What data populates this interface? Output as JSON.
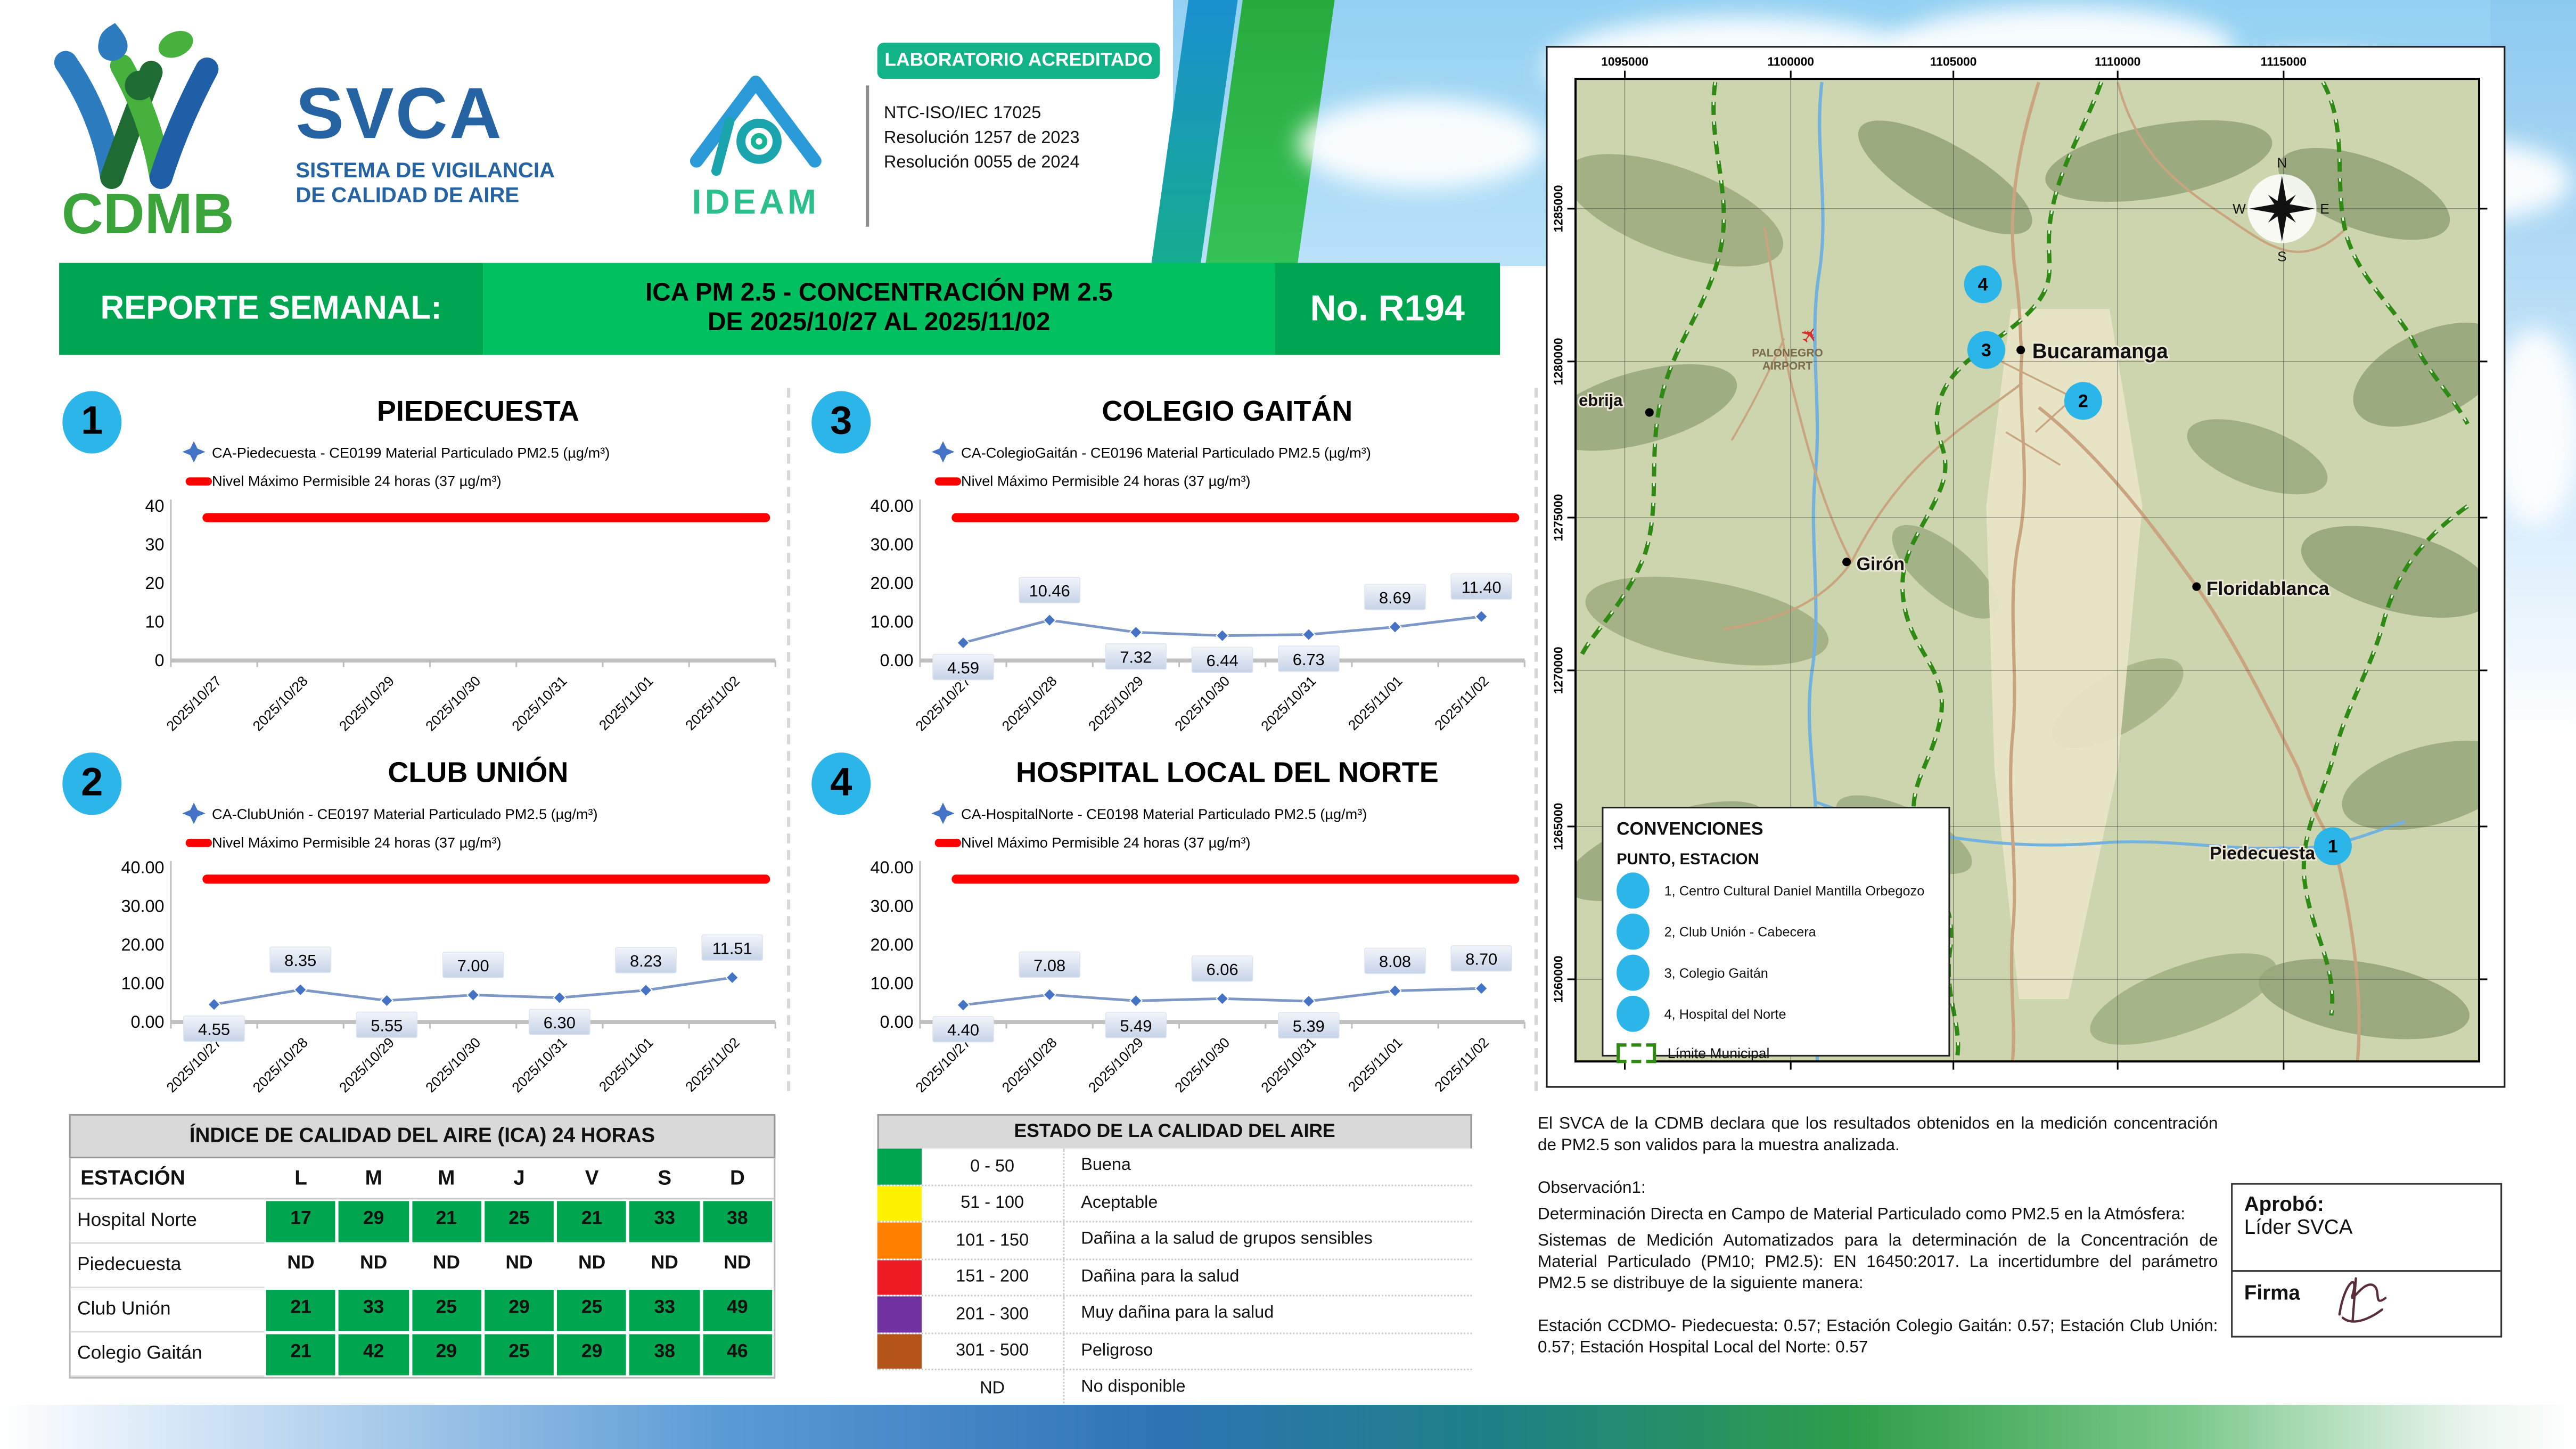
{
  "header": {
    "cdmb_logo_text": "CDMB",
    "svca": {
      "title": "SVCA",
      "subtitle1": "SISTEMA DE VIGILANCIA",
      "subtitle2": "DE CALIDAD DE AIRE"
    },
    "ideam_logo_text": "IDEAM",
    "accreditation": {
      "badge": "LABORATORIO ACREDITADO",
      "lines": [
        "NTC-ISO/IEC 17025",
        "Resolución 1257 de 2023",
        "Resolución 0055 de 2024"
      ]
    }
  },
  "banner": {
    "left": "REPORTE SEMANAL:",
    "center_line1": "ICA PM 2.5 - CONCENTRACIÓN PM 2.5",
    "center_line2": "DE 2025/10/27 AL 2025/11/02",
    "right": "No. R194"
  },
  "chart_data": [
    {
      "type": "line",
      "number": "1",
      "title": "PIEDECUESTA",
      "series_label": "CA-Piedecuesta - CE0199 Material Particulado PM2.5 (µg/m³)",
      "max_line_label": "Nivel Máximo Permisible 24 horas (37 µg/m³)",
      "max_value": 37,
      "ylim": [
        0,
        40
      ],
      "y_ticks": [
        "40",
        "30",
        "20",
        "10",
        "0"
      ],
      "x": [
        "2025/10/27",
        "2025/10/28",
        "2025/10/29",
        "2025/10/30",
        "2025/10/31",
        "2025/11/01",
        "2025/11/02"
      ],
      "values": null
    },
    {
      "type": "line",
      "number": "2",
      "title": "CLUB UNIÓN",
      "series_label": "CA-ClubUnión - CE0197 Material Particulado PM2.5 (µg/m³)",
      "max_line_label": "Nivel Máximo Permisible 24 horas (37 µg/m³)",
      "max_value": 37,
      "ylim": [
        0,
        40
      ],
      "y_ticks": [
        "40.00",
        "30.00",
        "20.00",
        "10.00",
        "0.00"
      ],
      "x": [
        "2025/10/27",
        "2025/10/28",
        "2025/10/29",
        "2025/10/30",
        "2025/10/31",
        "2025/11/01",
        "2025/11/02"
      ],
      "values": [
        4.55,
        8.35,
        5.55,
        7.0,
        6.3,
        8.23,
        11.51
      ]
    },
    {
      "type": "line",
      "number": "3",
      "title": "COLEGIO GAITÁN",
      "series_label": "CA-ColegioGaitán - CE0196 Material Particulado PM2.5 (µg/m³)",
      "max_line_label": "Nivel Máximo Permisible 24 horas (37 µg/m³)",
      "max_value": 37,
      "ylim": [
        0,
        40
      ],
      "y_ticks": [
        "40.00",
        "30.00",
        "20.00",
        "10.00",
        "0.00"
      ],
      "x": [
        "2025/10/27",
        "2025/10/28",
        "2025/10/29",
        "2025/10/30",
        "2025/10/31",
        "2025/11/01",
        "2025/11/02"
      ],
      "values": [
        4.59,
        10.46,
        7.32,
        6.44,
        6.73,
        8.69,
        11.4
      ]
    },
    {
      "type": "line",
      "number": "4",
      "title": "HOSPITAL LOCAL DEL NORTE",
      "series_label": "CA-HospitalNorte - CE0198 Material Particulado PM2.5 (µg/m³)",
      "max_line_label": "Nivel Máximo Permisible 24 horas (37 µg/m³)",
      "max_value": 37,
      "ylim": [
        0,
        40
      ],
      "y_ticks": [
        "40.00",
        "30.00",
        "20.00",
        "10.00",
        "0.00"
      ],
      "x": [
        "2025/10/27",
        "2025/10/28",
        "2025/10/29",
        "2025/10/30",
        "2025/10/31",
        "2025/11/01",
        "2025/11/02"
      ],
      "values": [
        4.4,
        7.08,
        5.49,
        6.06,
        5.39,
        8.08,
        8.7
      ]
    }
  ],
  "ica_table": {
    "title": "ÍNDICE DE CALIDAD DEL AIRE (ICA) 24 HORAS",
    "columns": [
      "ESTACIÓN",
      "L",
      "M",
      "M",
      "J",
      "V",
      "S",
      "D"
    ],
    "rows": [
      {
        "station": "Hospital Norte",
        "values": [
          "17",
          "29",
          "21",
          "25",
          "21",
          "33",
          "38"
        ]
      },
      {
        "station": "Piedecuesta",
        "values": [
          "ND",
          "ND",
          "ND",
          "ND",
          "ND",
          "ND",
          "ND"
        ]
      },
      {
        "station": "Club Unión",
        "values": [
          "21",
          "33",
          "25",
          "29",
          "25",
          "33",
          "49"
        ]
      },
      {
        "station": "Colegio Gaitán",
        "values": [
          "21",
          "42",
          "29",
          "25",
          "29",
          "38",
          "46"
        ]
      }
    ]
  },
  "estado_table": {
    "title": "ESTADO DE LA CALIDAD DEL AIRE",
    "rows": [
      {
        "range": "0 - 50",
        "label": "Buena",
        "color": "#00a550"
      },
      {
        "range": "51 - 100",
        "label": "Aceptable",
        "color": "#fff200"
      },
      {
        "range": "101 - 150",
        "label": "Dañina a la salud de grupos sensibles",
        "color": "#ff8000"
      },
      {
        "range": "151 - 200",
        "label": "Dañina para la salud",
        "color": "#ed1c24"
      },
      {
        "range": "201 - 300",
        "label": "Muy dañina para la salud",
        "color": "#7030a0"
      },
      {
        "range": "301 - 500",
        "label": "Peligroso",
        "color": "#b35418"
      },
      {
        "range": "ND",
        "label": "No disponible",
        "color": null
      }
    ]
  },
  "map": {
    "x_ticks": [
      "1095000",
      "1100000",
      "1105000",
      "1110000",
      "1115000"
    ],
    "y_ticks": [
      "1285000",
      "1280000",
      "1275000",
      "1270000",
      "1265000",
      "1260000"
    ],
    "cities": [
      "Bucaramanga",
      "Girón",
      "Floridablanca",
      "Piedecuesta",
      "ebrija",
      "PALONEGRO AIRPORT"
    ],
    "station_markers": [
      "1",
      "2",
      "3",
      "4"
    ],
    "compass": [
      "N",
      "E",
      "S",
      "W"
    ],
    "convenciones": {
      "title": "CONVENCIONES",
      "subtitle": "PUNTO, ESTACION",
      "items": [
        "1, Centro Cultural Daniel Mantilla Orbegozo",
        "2, Club Unión - Cabecera",
        "3, Colegio Gaitán",
        "4, Hospital del Norte"
      ],
      "limite": "Límite Municipal"
    }
  },
  "notes": {
    "p1": "El SVCA  de la CDMB declara que los resultados obtenidos en la medición concentración de PM2.5 son validos para la muestra  analizada.",
    "obs_title": "Observación1:",
    "obs1": "Determinación Directa en Campo de Material Particulado como PM2.5 en la Atmósfera:",
    "obs2": "Sistemas de Medición Automatizados para la  determinación de la Concentración de Material Particulado (PM10;  PM2.5): EN 16450:2017. La incertidumbre del parámetro PM2.5 se distribuye de la siguiente manera:",
    "uncertainties": "Estación CCDMO- Piedecuesta: 0.57; Estación Colegio Gaitán: 0.57; Estación Club Unión: 0.57; Estación Hospital Local del Norte: 0.57"
  },
  "approval": {
    "aprobo_label": "Aprobó:",
    "aprobo_value": "Líder SVCA",
    "firma_label": "Firma"
  },
  "colors": {
    "banner_dark_green": "#00a551",
    "banner_light_green": "#00c05f",
    "accreditation_teal": "#12b487",
    "ica_green": "#00a550",
    "max_line_red": "#fe0000",
    "series_blue": "#7c97c6",
    "marker_blue": "#4472c4",
    "station_badge_cyan": "#2cb5e8"
  }
}
